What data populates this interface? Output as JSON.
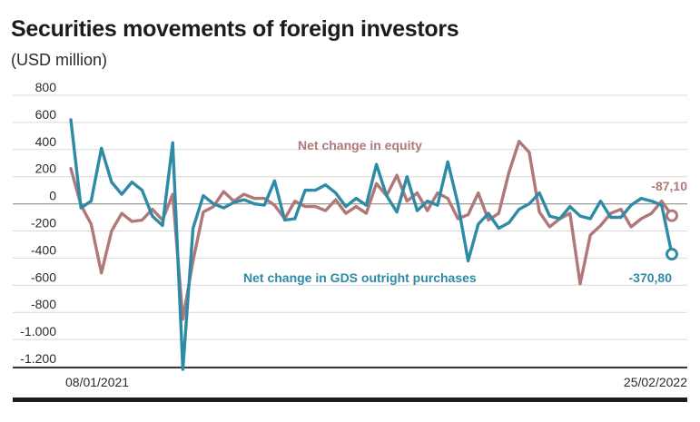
{
  "chart_data": {
    "type": "line",
    "title": "Securities movements of foreign investors",
    "subtitle": "(USD million)",
    "xlabel": "",
    "ylabel": "",
    "ylim": [
      -1200,
      800
    ],
    "y_ticks": [
      800,
      600,
      400,
      200,
      0,
      -200,
      -400,
      -600,
      -800,
      -1000,
      -1200
    ],
    "y_tick_labels": [
      "800",
      "600",
      "400",
      "200",
      "0",
      "-200",
      "-400",
      "-600",
      "-800",
      "-1.000",
      "-1.200"
    ],
    "x_tick_labels": [
      "08/01/2021",
      "25/02/2022"
    ],
    "x_range": [
      "08/01/2021",
      "25/02/2022"
    ],
    "grid": true,
    "legend": "inline labels",
    "colors": {
      "equity": "#b07878",
      "gds": "#2e8ba6",
      "axis": "#1c1c1c",
      "grid": "#d9d9d9"
    },
    "series": [
      {
        "name": "Net change in equity",
        "end_label": "-87,10",
        "values": [
          260,
          -10,
          -150,
          -510,
          -200,
          -70,
          -130,
          -120,
          -40,
          -120,
          70,
          -850,
          -420,
          -60,
          -20,
          90,
          20,
          70,
          40,
          40,
          -10,
          -110,
          20,
          -20,
          -20,
          -50,
          30,
          -70,
          -20,
          -70,
          150,
          60,
          210,
          20,
          80,
          -50,
          80,
          40,
          -110,
          -80,
          80,
          -120,
          -70,
          230,
          460,
          380,
          -60,
          -170,
          -110,
          -70,
          -590,
          -230,
          -160,
          -70,
          -40,
          -170,
          -110,
          -70,
          20,
          -87.1
        ]
      },
      {
        "name": "Net change in GDS outright purchases",
        "end_label": "-370,80",
        "values": [
          620,
          -30,
          20,
          410,
          160,
          70,
          160,
          100,
          -90,
          -160,
          450,
          -1220,
          -180,
          60,
          0,
          -30,
          10,
          30,
          0,
          -10,
          170,
          -120,
          -110,
          100,
          100,
          140,
          80,
          -20,
          40,
          -10,
          290,
          60,
          -60,
          200,
          -50,
          20,
          -10,
          310,
          0,
          -420,
          -150,
          -70,
          -180,
          -140,
          -40,
          0,
          80,
          -90,
          -110,
          -20,
          -90,
          -110,
          20,
          -100,
          -100,
          -10,
          40,
          20,
          -10,
          -370.8
        ]
      }
    ]
  }
}
